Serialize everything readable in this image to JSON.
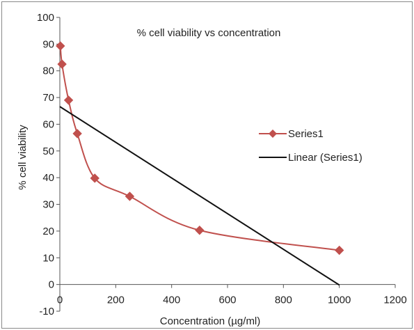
{
  "chart_data": {
    "type": "scatter",
    "title": "% cell viability vs concentration",
    "xlabel": "Concentration (µg/ml)",
    "ylabel": "% cell viability",
    "xlim": [
      0,
      1200
    ],
    "ylim": [
      -10,
      100
    ],
    "x_ticks": [
      0,
      200,
      400,
      600,
      800,
      1000,
      1200
    ],
    "y_ticks": [
      -10,
      0,
      10,
      20,
      30,
      40,
      50,
      60,
      70,
      80,
      90,
      100
    ],
    "grid": false,
    "legend_position": "right",
    "series": [
      {
        "name": "Series1",
        "style": "smooth-line-with-diamond-markers",
        "color": "#c0504d",
        "x": [
          1.95,
          7.8,
          31.25,
          62.5,
          125,
          250,
          500,
          1000
        ],
        "y": [
          89.3,
          82.5,
          69.0,
          56.5,
          39.8,
          33.0,
          20.3,
          12.8
        ]
      },
      {
        "name": "Linear (Series1)",
        "style": "line",
        "color": "#111111",
        "x": [
          0,
          1000
        ],
        "y": [
          66.6,
          -0.2
        ]
      }
    ]
  }
}
